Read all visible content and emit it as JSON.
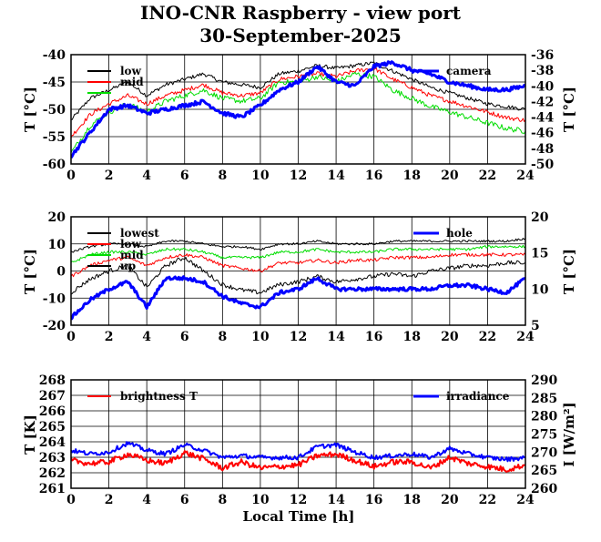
{
  "title": "INO-CNR Raspberry - view port",
  "subtitle": "30-September-2025",
  "chart_data": [
    {
      "type": "line",
      "xlabel": "",
      "ylabel": "T [°C]",
      "ylabel_right": "T [°C]",
      "xlim": [
        0,
        24
      ],
      "ylim": [
        -60,
        -40
      ],
      "ylim_right": [
        -50,
        -36
      ],
      "x_ticks": [
        "0",
        "2",
        "4",
        "6",
        "8",
        "10",
        "12",
        "14",
        "16",
        "18",
        "20",
        "22",
        "24"
      ],
      "y_ticks": [
        "-60",
        "-55",
        "-50",
        "-45",
        "-40"
      ],
      "y_ticks_right": [
        "-50",
        "-48",
        "-46",
        "-44",
        "-42",
        "-40",
        "-38",
        "-36"
      ],
      "grid": true,
      "legend_left": "top-left",
      "legend_right": "top-right",
      "series": [
        {
          "name": "low",
          "axis": "left",
          "color": "#000000",
          "x": [
            0,
            1,
            2,
            3,
            4,
            5,
            6,
            7,
            8,
            9,
            10,
            11,
            12,
            13,
            14,
            15,
            16,
            17,
            18,
            19,
            20,
            21,
            22,
            23,
            24
          ],
          "values": [
            -52,
            -48,
            -46.5,
            -45,
            -47.5,
            -45.5,
            -44.5,
            -43.5,
            -45,
            -45.5,
            -46,
            -43.5,
            -43,
            -42,
            -42.5,
            -42,
            -41.5,
            -43,
            -44.5,
            -46,
            -47,
            -48,
            -49,
            -49.5,
            -50
          ]
        },
        {
          "name": "mid",
          "axis": "left",
          "color": "#ff0000",
          "x": [
            0,
            1,
            2,
            3,
            4,
            5,
            6,
            7,
            8,
            9,
            10,
            11,
            12,
            13,
            14,
            15,
            16,
            17,
            18,
            19,
            20,
            21,
            22,
            23,
            24
          ],
          "values": [
            -55,
            -51,
            -49,
            -47.5,
            -49,
            -47.5,
            -46.5,
            -45.5,
            -47,
            -47.5,
            -47,
            -44.5,
            -44,
            -43.5,
            -44,
            -43,
            -42.5,
            -44.5,
            -46,
            -47.5,
            -48.5,
            -49.5,
            -50.5,
            -51.5,
            -52
          ]
        },
        {
          "name": "",
          "axis": "left",
          "color": "#00dd00",
          "x": [
            0,
            1,
            2,
            3,
            4,
            5,
            6,
            7,
            8,
            9,
            10,
            11,
            12,
            13,
            14,
            15,
            16,
            17,
            18,
            19,
            20,
            21,
            22,
            23,
            24
          ],
          "values": [
            -58,
            -53,
            -50.5,
            -49,
            -50.5,
            -48.5,
            -47.5,
            -46.5,
            -48,
            -48.5,
            -48,
            -45,
            -45,
            -44,
            -45,
            -43.5,
            -44,
            -46.5,
            -48,
            -49.5,
            -50.5,
            -51.5,
            -52.5,
            -53.5,
            -54
          ]
        },
        {
          "name": "camera",
          "axis": "right",
          "color": "#0000ff",
          "x": [
            0,
            1,
            2,
            3,
            4,
            5,
            6,
            7,
            8,
            9,
            10,
            11,
            12,
            13,
            14,
            15,
            16,
            17,
            18,
            19,
            20,
            21,
            22,
            23,
            24
          ],
          "values": [
            -49,
            -46,
            -43,
            -42.5,
            -43.5,
            -43,
            -42.5,
            -42,
            -43.5,
            -44,
            -42.5,
            -40.5,
            -39.5,
            -37.5,
            -39.5,
            -40,
            -37.5,
            -37,
            -38,
            -38.5,
            -39.5,
            -40,
            -40.5,
            -40.5,
            -40
          ]
        }
      ]
    },
    {
      "type": "line",
      "xlabel": "",
      "ylabel": "T [°C]",
      "ylabel_right": "T [°C]",
      "xlim": [
        0,
        24
      ],
      "ylim": [
        -20,
        20
      ],
      "ylim_right": [
        5,
        20
      ],
      "x_ticks": [
        "0",
        "2",
        "4",
        "6",
        "8",
        "10",
        "12",
        "14",
        "16",
        "18",
        "20",
        "22",
        "24"
      ],
      "y_ticks": [
        "-20",
        "-10",
        "0",
        "10",
        "20"
      ],
      "y_ticks_right": [
        "5",
        "10",
        "15",
        "20"
      ],
      "grid": true,
      "legend_left": "top-left",
      "legend_right": "top-right",
      "series": [
        {
          "name": "lowest",
          "axis": "left",
          "color": "#000000",
          "x": [
            0,
            1,
            2,
            3,
            4,
            5,
            6,
            7,
            8,
            9,
            10,
            11,
            12,
            13,
            14,
            15,
            16,
            17,
            18,
            19,
            20,
            21,
            22,
            23,
            24
          ],
          "values": [
            -8,
            -3,
            0,
            2,
            -6,
            2,
            5,
            0,
            -5,
            -7,
            -8,
            -5,
            -4,
            -2,
            -4,
            -3,
            -2,
            -1,
            -2,
            0,
            1,
            2,
            2,
            3,
            3
          ]
        },
        {
          "name": "low",
          "axis": "left",
          "color": "#ff0000",
          "x": [
            0,
            1,
            2,
            3,
            4,
            5,
            6,
            7,
            8,
            9,
            10,
            11,
            12,
            13,
            14,
            15,
            16,
            17,
            18,
            19,
            20,
            21,
            22,
            23,
            24
          ],
          "values": [
            -2,
            2,
            4,
            5,
            2,
            5,
            6,
            5,
            2,
            1,
            0,
            3,
            3,
            4,
            3,
            4,
            4,
            5,
            5,
            5,
            6,
            6,
            6,
            6,
            6
          ]
        },
        {
          "name": "mid",
          "axis": "left",
          "color": "#00dd00",
          "x": [
            0,
            1,
            2,
            3,
            4,
            5,
            6,
            7,
            8,
            9,
            10,
            11,
            12,
            13,
            14,
            15,
            16,
            17,
            18,
            19,
            20,
            21,
            22,
            23,
            24
          ],
          "values": [
            3,
            6,
            7,
            7,
            6,
            8,
            8,
            7,
            5,
            5,
            5,
            7,
            7,
            8,
            7,
            7,
            7,
            8,
            8,
            8,
            8,
            8,
            9,
            9,
            9
          ]
        },
        {
          "name": "up",
          "axis": "left",
          "color": "#000000",
          "x": [
            0,
            1,
            2,
            3,
            4,
            5,
            6,
            7,
            8,
            9,
            10,
            11,
            12,
            13,
            14,
            15,
            16,
            17,
            18,
            19,
            20,
            21,
            22,
            23,
            24
          ],
          "values": [
            7,
            9,
            10,
            10,
            9,
            11,
            11,
            10,
            9,
            9,
            8,
            10,
            10,
            11,
            10,
            10,
            10,
            11,
            11,
            11,
            11,
            11,
            11,
            11,
            12
          ]
        },
        {
          "name": "hole",
          "axis": "right",
          "color": "#0000ff",
          "x": [
            0,
            1,
            2,
            3,
            4,
            5,
            6,
            7,
            8,
            9,
            10,
            11,
            12,
            13,
            14,
            15,
            16,
            17,
            18,
            19,
            20,
            21,
            22,
            23,
            24
          ],
          "values": [
            6,
            8.5,
            10,
            11,
            7.5,
            11.5,
            11.5,
            11,
            9,
            8,
            7.5,
            9.5,
            10,
            11.5,
            10,
            10,
            10,
            10,
            10,
            10,
            10.5,
            10.5,
            10,
            9.5,
            11.5
          ]
        }
      ]
    },
    {
      "type": "line",
      "xlabel": "Local Time [h]",
      "ylabel": "T [K]",
      "ylabel_right": "I [W/m²]",
      "xlim": [
        0,
        24
      ],
      "ylim": [
        261,
        268
      ],
      "ylim_right": [
        260,
        290
      ],
      "x_ticks": [
        "0",
        "2",
        "4",
        "6",
        "8",
        "10",
        "12",
        "14",
        "16",
        "18",
        "20",
        "22",
        "24"
      ],
      "y_ticks": [
        "261",
        "262",
        "263",
        "264",
        "265",
        "266",
        "267",
        "268"
      ],
      "y_ticks_right": [
        "260",
        "265",
        "270",
        "275",
        "280",
        "285",
        "290"
      ],
      "grid": true,
      "legend_left": "top-left",
      "legend_right": "top-right",
      "series": [
        {
          "name": "brightness T",
          "axis": "left",
          "color": "#ff0000",
          "x": [
            0,
            1,
            2,
            3,
            4,
            5,
            6,
            7,
            8,
            9,
            10,
            11,
            12,
            13,
            14,
            15,
            16,
            17,
            18,
            19,
            20,
            21,
            22,
            23,
            24
          ],
          "values": [
            262.8,
            262.6,
            262.7,
            263.2,
            262.8,
            262.6,
            263.3,
            262.9,
            262.3,
            262.7,
            262.3,
            262.4,
            262.5,
            263.1,
            263.2,
            262.8,
            262.4,
            262.7,
            262.7,
            262.3,
            263.0,
            262.6,
            262.4,
            262.2,
            262.5
          ]
        },
        {
          "name": "irradiance",
          "axis": "right",
          "color": "#0000ff",
          "x": [
            0,
            1,
            2,
            3,
            4,
            5,
            6,
            7,
            8,
            9,
            10,
            11,
            12,
            13,
            14,
            15,
            16,
            17,
            18,
            19,
            20,
            21,
            22,
            23,
            24
          ],
          "values": [
            270.5,
            269.5,
            270,
            272.5,
            270.5,
            269.5,
            272,
            270.5,
            268.5,
            269,
            268.5,
            268.5,
            268.5,
            271.5,
            272,
            270,
            268.5,
            269,
            269.5,
            268.5,
            271,
            269.5,
            268.5,
            268,
            268.5
          ]
        }
      ]
    }
  ]
}
